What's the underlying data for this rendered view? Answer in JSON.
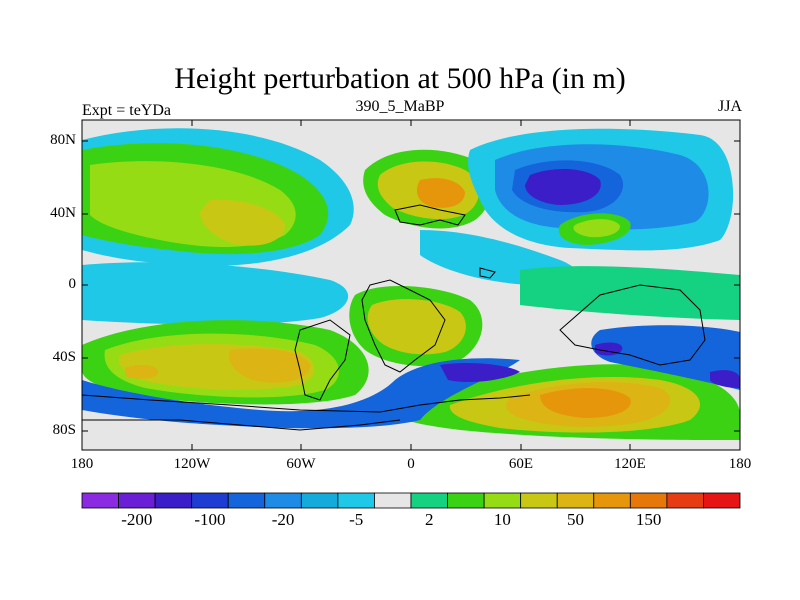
{
  "title": "Height perturbation at 500 hPa (in m)",
  "left_label": "Expt = teYDa",
  "center_label": "390_5_MaBP",
  "right_label": "JJA",
  "y_ticks": [
    "80N",
    "40N",
    "0",
    "40S",
    "80S"
  ],
  "x_ticks": [
    "180",
    "120W",
    "60W",
    "0",
    "60E",
    "120E",
    "180"
  ],
  "colorbar": {
    "colors": [
      "#8a2be2",
      "#6a1fd6",
      "#3c1ec8",
      "#1e3cd2",
      "#1464dc",
      "#1e8ce6",
      "#14aadc",
      "#1ec8e6",
      "#e6e6e6",
      "#14d282",
      "#3cd214",
      "#96dc14",
      "#c8c814",
      "#dcb414",
      "#e6960a",
      "#e6780a",
      "#e63c14",
      "#e61414"
    ],
    "labels": [
      "-200",
      "-100",
      "-20",
      "-5",
      "2",
      "10",
      "50",
      "150"
    ],
    "label_positions": [
      1,
      3,
      5,
      7,
      9,
      11,
      13,
      15
    ]
  },
  "map_data": {
    "variable": "500 hPa geopotential height perturbation",
    "units": "m",
    "region": "Global",
    "lon_range": [
      -180,
      180
    ],
    "lat_range": [
      -90,
      90
    ],
    "season": "JJA",
    "color_background": "#e6e6e6",
    "features": [
      {
        "name": "north pacific-atlantic positive band",
        "color": "#96dc14"
      },
      {
        "name": "eurasian negative low",
        "color": "#3c1ec8"
      },
      {
        "name": "mediterranean positive high",
        "color": "#dcb414"
      },
      {
        "name": "southern pacific positive high",
        "color": "#dcb414"
      },
      {
        "name": "south indian ocean positive high",
        "color": "#e6960a"
      },
      {
        "name": "southern ocean negative band",
        "color": "#1e3cd2"
      }
    ]
  }
}
